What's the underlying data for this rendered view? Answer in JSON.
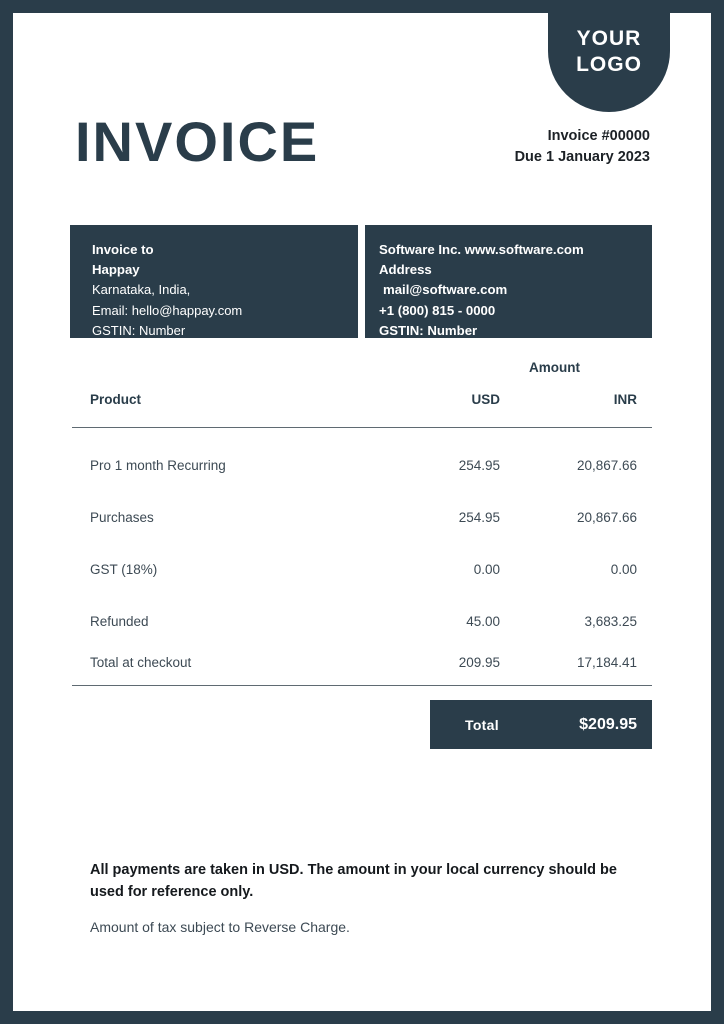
{
  "colors": {
    "navy": "#2a3d4a",
    "page_bg": "#ffffff",
    "body_text": "#3d4a54",
    "heading_text": "#2a3d4a"
  },
  "logo": {
    "line1": "YOUR",
    "line2": "LOGO"
  },
  "header": {
    "title": "INVOICE",
    "invoice_number": "Invoice #00000",
    "due_date": "Due 1 January 2023"
  },
  "billing": {
    "invoice_to": {
      "label": "Invoice to",
      "name": "Happay",
      "location": "Karnataka, India,",
      "email": "Email: hello@happay.com",
      "gstin": "GSTIN: Number"
    },
    "company": {
      "name_site": "Software Inc. www.software.com",
      "address_label": "Address",
      "email": "mail@software.com",
      "phone": "+1 (800) 815 - 0000",
      "gstin": "GSTIN: Number"
    }
  },
  "table": {
    "amount_header": "Amount",
    "columns": {
      "product": "Product",
      "usd": "USD",
      "inr": "INR"
    },
    "rows": [
      {
        "product": "Pro 1 month Recurring",
        "usd": "254.95",
        "inr": "20,867.66"
      },
      {
        "product": "Purchases",
        "usd": "254.95",
        "inr": "20,867.66"
      },
      {
        "product": "GST (18%)",
        "usd": "0.00",
        "inr": "0.00"
      },
      {
        "product": "Refunded",
        "usd": "45.00",
        "inr": "3,683.25"
      },
      {
        "product": "Total at checkout",
        "usd": "209.95",
        "inr": "17,184.41"
      }
    ],
    "total": {
      "label": "Total",
      "value": "$209.95"
    }
  },
  "footer": {
    "note_bold": "All payments are taken in USD. The amount in your local currency should be used for reference only.",
    "note": "Amount of tax subject to Reverse Charge."
  }
}
